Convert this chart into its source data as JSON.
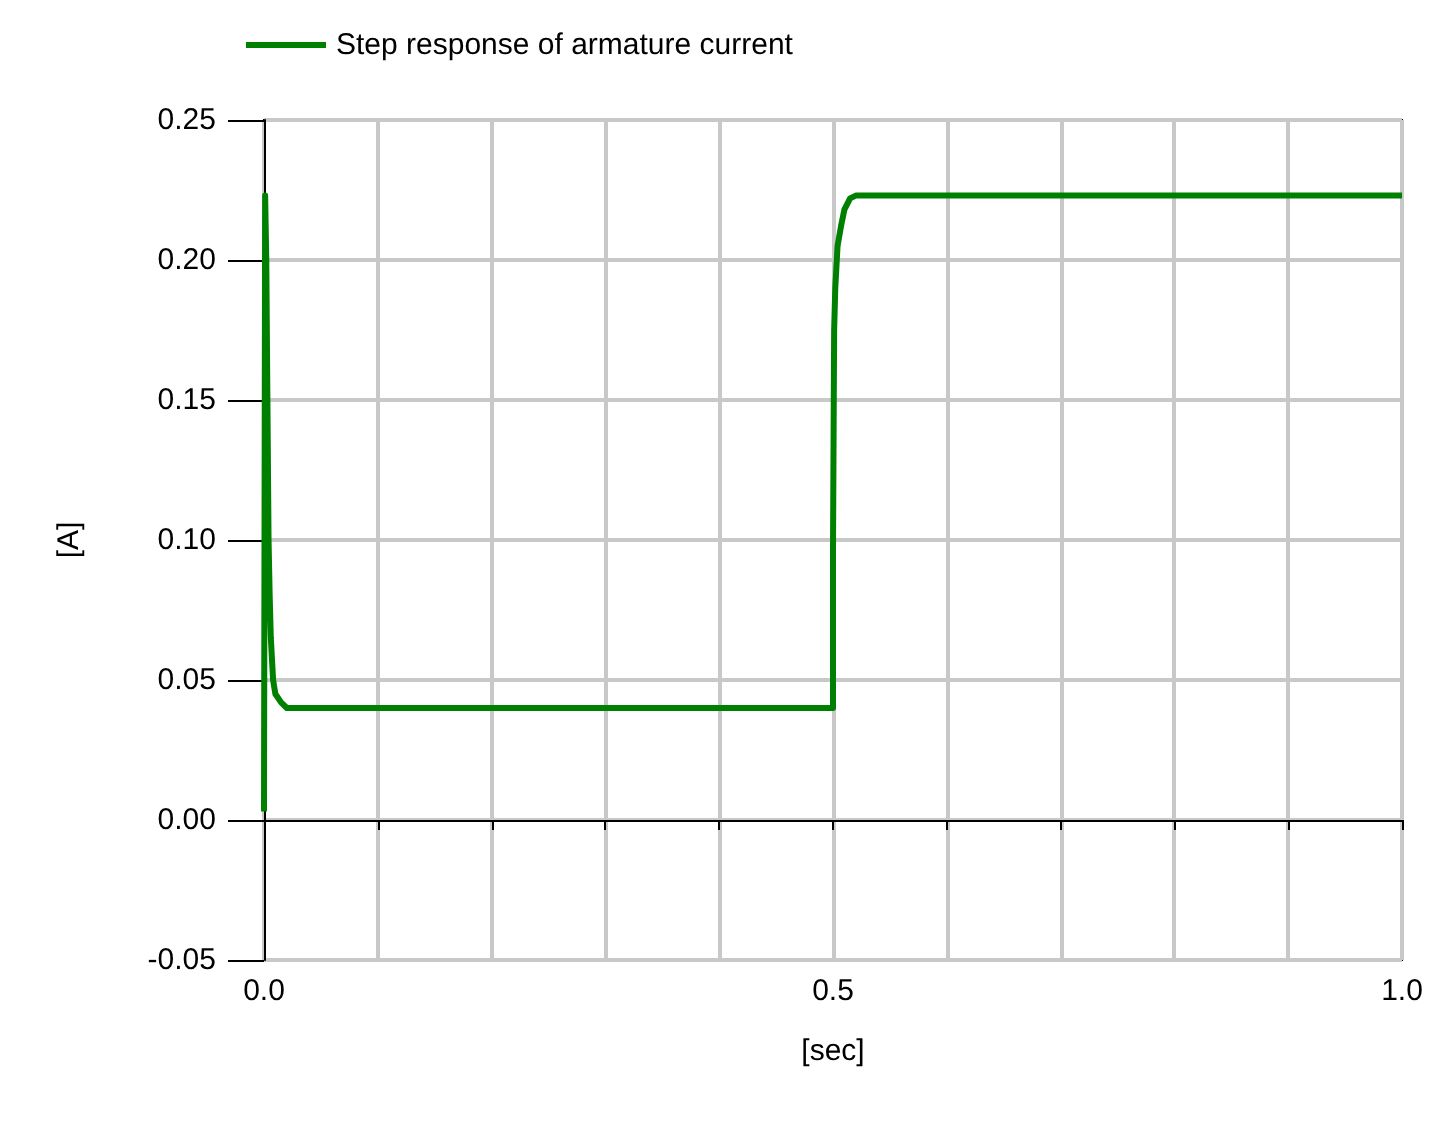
{
  "chart_data": {
    "type": "line",
    "xlabel": "[sec]",
    "ylabel": "[A]",
    "legend": "top left",
    "grid": true,
    "marker": "none",
    "line_style": "solid",
    "xlim": [
      0,
      1
    ],
    "xticks": [
      {
        "value": 0,
        "label": "0.0"
      },
      {
        "value": 0.1,
        "label": null
      },
      {
        "value": 0.2,
        "label": null
      },
      {
        "value": 0.3,
        "label": null
      },
      {
        "value": 0.4,
        "label": null
      },
      {
        "value": 0.5,
        "label": "0.5"
      },
      {
        "value": 0.6,
        "label": null
      },
      {
        "value": 0.7,
        "label": null
      },
      {
        "value": 0.8,
        "label": null
      },
      {
        "value": 0.9,
        "label": null
      },
      {
        "value": 1,
        "label": "1.0"
      }
    ],
    "ylim": [
      -0.05,
      0.25
    ],
    "yticks": [
      {
        "value": -0.05,
        "label": "-0.05"
      },
      {
        "value": 0,
        "label": "0.00"
      },
      {
        "value": 0.05,
        "label": "0.05"
      },
      {
        "value": 0.1,
        "label": "0.10"
      },
      {
        "value": 0.15,
        "label": "0.15"
      },
      {
        "value": 0.2,
        "label": "0.20"
      },
      {
        "value": 0.25,
        "label": "0.25"
      }
    ],
    "series": [
      {
        "name": "Step response of armature current",
        "color": "#008000",
        "x": [
          0,
          0.001,
          0.002,
          0.003,
          0.004,
          0.005,
          0.006,
          0.008,
          0.01,
          0.015,
          0.02,
          0.03,
          0.5,
          0.5,
          0.501,
          0.502,
          0.504,
          0.507,
          0.51,
          0.515,
          0.52,
          1.0
        ],
        "values": [
          0.003,
          0.223,
          0.2,
          0.15,
          0.1,
          0.08,
          0.065,
          0.05,
          0.045,
          0.042,
          0.04,
          0.04,
          0.04,
          0.097,
          0.175,
          0.19,
          0.205,
          0.212,
          0.218,
          0.222,
          0.223,
          0.223
        ]
      }
    ]
  }
}
